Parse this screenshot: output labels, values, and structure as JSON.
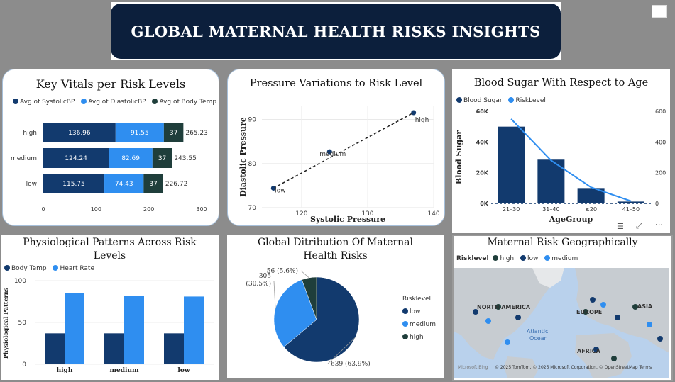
{
  "title": "GLOBAL MATERNAL HEALTH RISKS INSIGHTS",
  "colors": {
    "navy": "#123a6e",
    "blue": "#2f8ef0",
    "darkgreen": "#1f3e3b",
    "banner": "#0c1f3c"
  },
  "panels": {
    "vitals": {
      "title": "Key Vitals per Risk Levels",
      "legend": [
        "Avg of SystolicBP",
        "Avg of DiastolicBP",
        "Avg of Body Temp"
      ]
    },
    "pressure": {
      "title": "Pressure Variations to Risk Level"
    },
    "sugar": {
      "title": "Blood Sugar With Respect to Age",
      "legend": [
        "Blood Sugar",
        "RiskLevel"
      ]
    },
    "physio": {
      "title": "Physiological Patterns Across Risk Levels",
      "legend": [
        "Body Temp",
        "Heart Rate"
      ]
    },
    "dist": {
      "title": "Global Ditribution Of Maternal Health Risks",
      "legend_title": "Risklevel"
    },
    "map": {
      "title": "Maternal Risk Geographically",
      "legend_title": "Risklevel",
      "legend": [
        "high",
        "low",
        "medium"
      ],
      "labels": {
        "na": "NORTH AMERICA",
        "eu": "EUROPE",
        "asia": "ASIA",
        "africa": "AFRICA",
        "atlantic": "Atlantic",
        "ocean": "Ocean"
      },
      "footer": "© 2025 TomTom, © 2025 Microsoft Corporation, © OpenStreetMap  Terms",
      "bing": "Microsoft Bing"
    }
  },
  "chart_data": [
    {
      "type": "bar",
      "title": "Key Vitals per Risk Levels",
      "orientation": "horizontal-stacked",
      "categories": [
        "high",
        "medium",
        "low"
      ],
      "series": [
        {
          "name": "Avg of SystolicBP",
          "values": [
            136.96,
            124.24,
            115.75
          ]
        },
        {
          "name": "Avg of DiastolicBP",
          "values": [
            91.55,
            82.69,
            74.43
          ]
        },
        {
          "name": "Avg of Body Temp",
          "values": [
            37,
            37,
            37
          ]
        }
      ],
      "totals": [
        "265.23",
        "243.55",
        "226.72"
      ],
      "labels": [
        [
          "136.96",
          "91.55",
          "37"
        ],
        [
          "124.24",
          "82.69",
          "37"
        ],
        [
          "115.75",
          "74.43",
          "37"
        ]
      ],
      "xticks": [
        "0",
        "100",
        "200",
        "300"
      ],
      "xlim": [
        0,
        300
      ]
    },
    {
      "type": "scatter",
      "title": "Pressure Variations to Risk Level",
      "xlabel": "Systolic Pressure",
      "ylabel": "Diastolic Pressure",
      "points": [
        {
          "label": "low",
          "x": 115.75,
          "y": 74.43
        },
        {
          "label": "medium",
          "x": 124.24,
          "y": 82.69
        },
        {
          "label": "high",
          "x": 136.96,
          "y": 91.55
        }
      ],
      "xticks": [
        "120",
        "130",
        "140"
      ],
      "yticks": [
        "70",
        "80",
        "90"
      ],
      "xlim": [
        114,
        140
      ],
      "ylim": [
        70,
        93
      ]
    },
    {
      "type": "bar",
      "title": "Blood Sugar With Respect to Age",
      "xlabel": "AgeGroup",
      "ylabel": "Blood Sugar",
      "categories": [
        "21–30",
        "31–40",
        "≤20",
        "41–50"
      ],
      "series": [
        {
          "name": "Blood Sugar",
          "values": [
            50000,
            28500,
            10000,
            1200
          ]
        },
        {
          "name": "RiskLevel",
          "type": "line",
          "axis": "right",
          "values": [
            550,
            280,
            105,
            15
          ]
        }
      ],
      "yticks_left": [
        "0K",
        "20K",
        "40K",
        "60K"
      ],
      "yticks_right": [
        "0",
        "200",
        "400",
        "600"
      ],
      "ylim": [
        0,
        60000
      ],
      "ylim_right": [
        0,
        600
      ]
    },
    {
      "type": "bar",
      "title": "Physiological Patterns Across Risk Levels",
      "ylabel": "Physiological Patterns",
      "categories": [
        "high",
        "medium",
        "low"
      ],
      "series": [
        {
          "name": "Body Temp",
          "values": [
            37,
            37,
            37
          ]
        },
        {
          "name": "Heart Rate",
          "values": [
            85,
            82,
            81
          ]
        }
      ],
      "yticks": [
        "0",
        "50",
        "100"
      ],
      "ylim": [
        0,
        100
      ]
    },
    {
      "type": "pie",
      "title": "Global Ditribution Of Maternal Health Risks",
      "slices": [
        {
          "name": "low",
          "value": 639,
          "label": "639 (63.9%)"
        },
        {
          "name": "medium",
          "value": 305,
          "label": "305 (30.5%)"
        },
        {
          "name": "high",
          "value": 56,
          "label": "56 (5.6%)"
        }
      ]
    }
  ]
}
